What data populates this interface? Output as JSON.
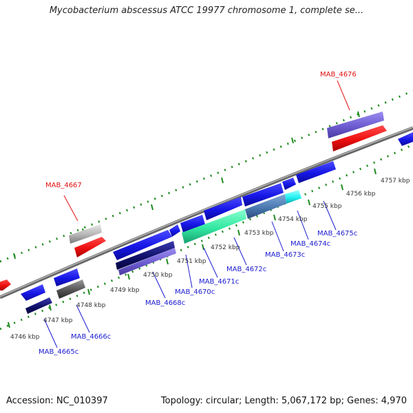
{
  "title": "Mycobacterium abscessus ATCC 19977 chromosome 1, complete se...",
  "footer": {
    "accession": "Accession: NC_010397",
    "summary": "Topology: circular; Length: 5,067,172 bp; Genes: 4,970"
  },
  "ticks": [
    {
      "label": "4746 kbp"
    },
    {
      "label": "4747 kbp"
    },
    {
      "label": "4748 kbp"
    },
    {
      "label": "4749 kbp"
    },
    {
      "label": "4750 kbp"
    },
    {
      "label": "4751 kbp"
    },
    {
      "label": "4752 kbp"
    },
    {
      "label": "4753 kbp"
    },
    {
      "label": "4754 kbp"
    },
    {
      "label": "4755 kbp"
    },
    {
      "label": "4756 kbp"
    },
    {
      "label": "4757 kbp"
    }
  ],
  "gene_labels": [
    {
      "text": "MAB_4667",
      "color": "#e01010"
    },
    {
      "text": "MAB_4676",
      "color": "#e01010"
    },
    {
      "text": "MAB_4665c",
      "color": "#1a1ad0"
    },
    {
      "text": "MAB_4666c",
      "color": "#1a1ad0"
    },
    {
      "text": "MAB_4668c",
      "color": "#1a1ad0"
    },
    {
      "text": "MAB_4670c",
      "color": "#1a1ad0"
    },
    {
      "text": "MAB_4671c",
      "color": "#1a1ad0"
    },
    {
      "text": "MAB_4672c",
      "color": "#1a1ad0"
    },
    {
      "text": "MAB_4673c",
      "color": "#1a1ad0"
    },
    {
      "text": "MAB_4674c",
      "color": "#1a1ad0"
    },
    {
      "text": "MAB_4675c",
      "color": "#1a1ad0"
    }
  ],
  "colors": {
    "backbone": "#8a8a8a",
    "tick_dot": "#1f8a1f",
    "forward_gene": "#e81010",
    "reverse_gene": "#1a1ae6",
    "rna": "#9a9a9a",
    "product_purple": "#7a6ad6",
    "product_navy": "#14147a",
    "product_green": "#3cf0a8",
    "product_steel": "#4f7fb5",
    "product_cyan": "#22f2f2",
    "product_grey": "#555555"
  }
}
